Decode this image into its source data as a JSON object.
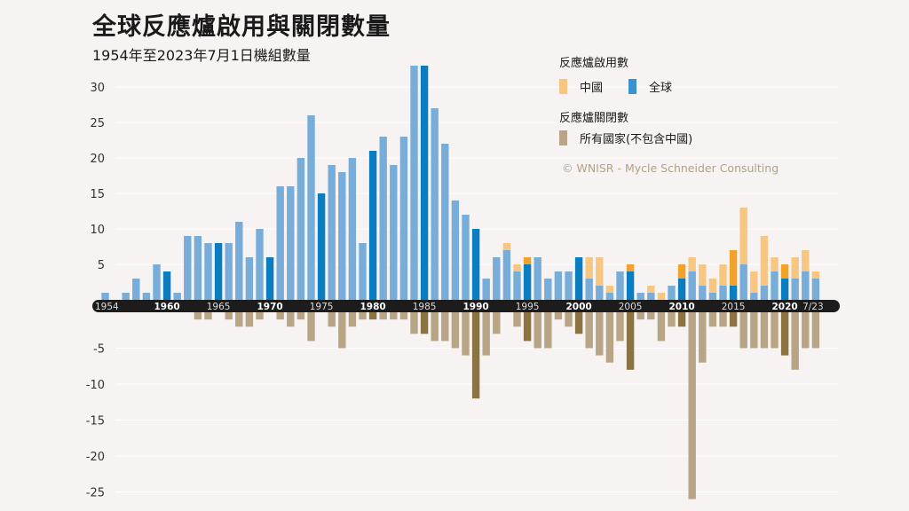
{
  "title": "全球反應爐啟用與關閉數量",
  "subtitle": "1954年至2023年7月1日機組數量",
  "legend": {
    "startups_header": "反應爐啟用數",
    "china_label": "中國",
    "world_label": "全球",
    "closures_header": "反應爐關閉數",
    "closures_label": "所有國家(不包含中國)"
  },
  "copyright": "© WNISR - Mycle Schneider Consulting",
  "colors": {
    "world": "#78acd9",
    "world_highlight": "#0a7cc0",
    "china": "#f8c683",
    "china_highlight": "#f2a22b",
    "closures": "#b8a585",
    "closures_highlight": "#8c7442",
    "axis_band": "#1c1c1c",
    "background": "#f6f3f2"
  },
  "chart_data": {
    "type": "bar",
    "stacked": true,
    "x": [
      1954,
      1955,
      1956,
      1957,
      1958,
      1959,
      1960,
      1961,
      1962,
      1963,
      1964,
      1965,
      1966,
      1967,
      1968,
      1969,
      1970,
      1971,
      1972,
      1973,
      1974,
      1975,
      1976,
      1977,
      1978,
      1979,
      1980,
      1981,
      1982,
      1983,
      1984,
      1985,
      1986,
      1987,
      1988,
      1989,
      1990,
      1991,
      1992,
      1993,
      1994,
      1995,
      1996,
      1997,
      1998,
      1999,
      2000,
      2001,
      2002,
      2003,
      2004,
      2005,
      2006,
      2007,
      2008,
      2009,
      2010,
      2011,
      2012,
      2013,
      2014,
      2015,
      2016,
      2017,
      2018,
      2019,
      2020,
      2021,
      2022,
      2023
    ],
    "x_tick_labels": [
      "1954",
      "1960",
      "1965",
      "1970",
      "1975",
      "1980",
      "1985",
      "1990",
      "1995",
      "2000",
      "2005",
      "2010",
      "2015",
      "2020",
      "7/23"
    ],
    "bold_tick_labels": [
      "1960",
      "1970",
      "1980",
      "1990",
      "2000",
      "2010",
      "2020"
    ],
    "highlight_years": [
      1960,
      1965,
      1970,
      1975,
      1980,
      1985,
      1990,
      1995,
      2000,
      2005,
      2010,
      2015,
      2020
    ],
    "series": [
      {
        "name": "全球",
        "role": "startups_world",
        "values": [
          1,
          0,
          1,
          3,
          1,
          5,
          4,
          1,
          9,
          9,
          8,
          8,
          8,
          11,
          6,
          10,
          6,
          16,
          16,
          20,
          26,
          15,
          19,
          18,
          20,
          8,
          21,
          23,
          19,
          23,
          33,
          33,
          27,
          22,
          14,
          12,
          10,
          3,
          6,
          7,
          4,
          5,
          6,
          3,
          4,
          4,
          6,
          3,
          2,
          1,
          4,
          4,
          1,
          1,
          0,
          2,
          3,
          4,
          2,
          1,
          2,
          2,
          5,
          1,
          2,
          4,
          3,
          3,
          4,
          3
        ]
      },
      {
        "name": "中國",
        "role": "startups_china",
        "values": [
          0,
          0,
          0,
          0,
          0,
          0,
          0,
          0,
          0,
          0,
          0,
          0,
          0,
          0,
          0,
          0,
          0,
          0,
          0,
          0,
          0,
          0,
          0,
          0,
          0,
          0,
          0,
          0,
          0,
          0,
          0,
          0,
          0,
          0,
          0,
          0,
          0,
          0,
          0,
          1,
          1,
          1,
          0,
          0,
          0,
          0,
          0,
          3,
          4,
          1,
          0,
          1,
          0,
          1,
          1,
          0,
          2,
          2,
          3,
          2,
          3,
          5,
          8,
          3,
          7,
          2,
          2,
          3,
          3,
          1
        ]
      },
      {
        "name": "所有國家(不包含中國)",
        "role": "closures",
        "values": [
          0,
          0,
          0,
          0,
          0,
          0,
          0,
          0,
          0,
          1,
          1,
          0,
          1,
          2,
          2,
          1,
          0,
          1,
          2,
          1,
          4,
          0,
          2,
          5,
          2,
          1,
          1,
          1,
          1,
          1,
          3,
          3,
          4,
          4,
          5,
          6,
          12,
          6,
          3,
          0,
          2,
          4,
          5,
          5,
          1,
          2,
          3,
          5,
          6,
          7,
          4,
          8,
          1,
          1,
          4,
          2,
          2,
          26,
          7,
          2,
          2,
          2,
          5,
          5,
          5,
          5,
          6,
          8,
          5,
          5
        ]
      }
    ],
    "y_ticks": [
      30,
      25,
      20,
      15,
      10,
      5,
      -5,
      -10,
      -15,
      -20,
      -25
    ],
    "ylim": [
      -27,
      33
    ]
  }
}
